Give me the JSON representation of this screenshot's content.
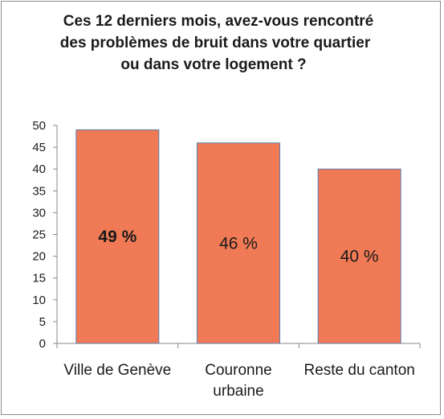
{
  "chart_data": {
    "type": "bar",
    "title_lines": [
      "Ces 12 derniers mois, avez-vous rencontré",
      "des problèmes de bruit dans votre quartier",
      "ou dans votre logement ?"
    ],
    "categories": [
      [
        "Ville de Genève"
      ],
      [
        "Couronne",
        "urbaine"
      ],
      [
        "Reste du canton"
      ]
    ],
    "values": [
      49,
      46,
      40
    ],
    "data_labels": [
      "49 %",
      "46 %",
      "40 %"
    ],
    "bold_label_index": 0,
    "ylim": [
      0,
      50
    ],
    "yticks": [
      0,
      5,
      10,
      15,
      20,
      25,
      30,
      35,
      40,
      45,
      50
    ],
    "grid": false,
    "bar_color": "#f07a55",
    "bar_edge_color": "#5a7fb5",
    "axis_color": "#888888"
  }
}
